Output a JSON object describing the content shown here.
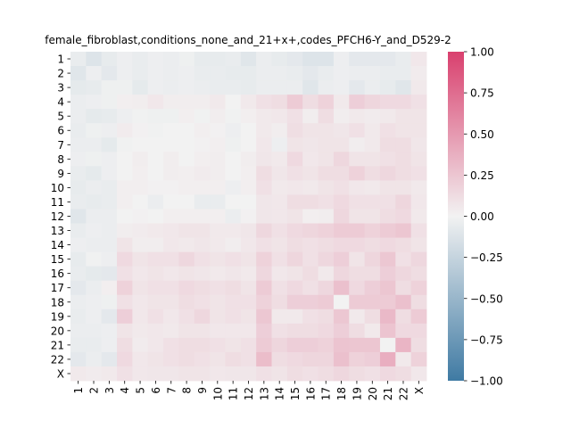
{
  "chart_data": {
    "type": "heatmap",
    "title": "female_fibroblast,conditions_none_and_21+x+,codes_PFCH6-Y_and_D529-2",
    "xlabel": "",
    "ylabel": "",
    "row_labels": [
      "1",
      "2",
      "3",
      "4",
      "5",
      "6",
      "7",
      "8",
      "9",
      "10",
      "11",
      "12",
      "13",
      "14",
      "15",
      "16",
      "17",
      "18",
      "19",
      "20",
      "21",
      "22",
      "X"
    ],
    "col_labels": [
      "1",
      "2",
      "3",
      "4",
      "5",
      "6",
      "7",
      "8",
      "9",
      "10",
      "11",
      "12",
      "13",
      "14",
      "15",
      "16",
      "17",
      "18",
      "19",
      "20",
      "21",
      "22",
      "X"
    ],
    "colorbar": {
      "vmin": -1.0,
      "vmax": 1.0,
      "ticks": [
        1.0,
        0.75,
        0.5,
        0.25,
        0.0,
        -0.25,
        -0.5,
        -0.75,
        -1.0
      ],
      "tick_labels": [
        "1.00",
        "0.75",
        "0.50",
        "0.25",
        "0.00",
        "−0.25",
        "−0.50",
        "−0.75",
        "−1.00"
      ],
      "color_low": "#3f7aa3",
      "color_mid": "#f2f2f2",
      "color_high": "#d9406e"
    },
    "values": [
      [
        -0.05,
        -0.12,
        -0.06,
        -0.03,
        -0.05,
        -0.03,
        -0.04,
        -0.02,
        -0.06,
        -0.06,
        -0.05,
        -0.1,
        -0.04,
        -0.06,
        -0.08,
        -0.12,
        -0.12,
        -0.03,
        -0.08,
        -0.08,
        -0.08,
        -0.05,
        0.06
      ],
      [
        -0.1,
        -0.03,
        -0.08,
        -0.03,
        -0.05,
        -0.03,
        -0.04,
        -0.03,
        -0.05,
        -0.05,
        -0.06,
        -0.06,
        -0.04,
        -0.04,
        -0.05,
        -0.08,
        -0.05,
        -0.03,
        -0.04,
        -0.04,
        -0.05,
        -0.05,
        0.04
      ],
      [
        -0.07,
        -0.06,
        -0.02,
        -0.02,
        -0.07,
        -0.03,
        -0.04,
        -0.03,
        -0.04,
        -0.05,
        -0.05,
        -0.06,
        -0.04,
        -0.04,
        -0.04,
        -0.1,
        -0.04,
        -0.03,
        -0.08,
        -0.04,
        -0.06,
        -0.1,
        0.05
      ],
      [
        -0.04,
        -0.03,
        -0.02,
        0.02,
        0.03,
        0.06,
        0.03,
        0.03,
        0.03,
        0.05,
        0.0,
        0.05,
        0.1,
        0.12,
        0.22,
        0.12,
        0.18,
        0.05,
        0.2,
        0.16,
        0.14,
        0.14,
        0.1
      ],
      [
        -0.04,
        -0.07,
        -0.06,
        -0.03,
        -0.01,
        -0.02,
        -0.02,
        0.02,
        -0.01,
        0.03,
        -0.01,
        0.02,
        0.05,
        0.06,
        0.1,
        0.03,
        0.12,
        0.03,
        0.05,
        0.04,
        0.05,
        0.08,
        0.08
      ],
      [
        -0.05,
        -0.02,
        -0.03,
        0.04,
        0.01,
        -0.01,
        0.0,
        0.0,
        0.02,
        0.01,
        -0.03,
        0.0,
        0.05,
        0.03,
        0.11,
        0.08,
        0.08,
        0.07,
        0.1,
        0.05,
        0.1,
        0.08,
        0.08
      ],
      [
        -0.04,
        -0.04,
        -0.07,
        -0.01,
        0.0,
        0.0,
        0.0,
        0.0,
        0.01,
        0.02,
        -0.02,
        0.0,
        0.06,
        -0.03,
        0.08,
        0.07,
        0.08,
        0.08,
        0.03,
        0.05,
        0.12,
        0.12,
        0.07
      ],
      [
        -0.03,
        -0.02,
        -0.03,
        0.0,
        0.03,
        0.0,
        0.03,
        0.0,
        0.02,
        0.03,
        0.0,
        0.03,
        0.07,
        0.05,
        0.14,
        0.06,
        0.08,
        0.15,
        0.08,
        0.08,
        0.1,
        0.12,
        0.08
      ],
      [
        -0.05,
        -0.07,
        -0.03,
        0.0,
        0.02,
        0.0,
        0.03,
        0.02,
        0.04,
        0.03,
        0.0,
        0.02,
        0.12,
        0.07,
        0.1,
        0.08,
        0.12,
        0.12,
        0.18,
        0.12,
        0.15,
        0.12,
        0.1
      ],
      [
        -0.06,
        -0.04,
        -0.05,
        0.02,
        0.02,
        0.01,
        0.01,
        0.02,
        0.02,
        0.02,
        -0.03,
        0.02,
        0.1,
        0.05,
        0.06,
        0.05,
        0.08,
        0.1,
        0.06,
        0.05,
        0.08,
        0.08,
        0.05
      ],
      [
        -0.05,
        -0.06,
        -0.05,
        0.02,
        0.0,
        -0.04,
        0.0,
        0.0,
        -0.05,
        -0.05,
        0.0,
        0.0,
        0.07,
        0.06,
        0.12,
        0.12,
        0.1,
        0.14,
        0.1,
        0.1,
        0.1,
        0.16,
        0.06
      ],
      [
        -0.1,
        -0.04,
        -0.04,
        0.0,
        0.01,
        0.0,
        0.02,
        0.02,
        0.02,
        0.02,
        -0.04,
        0.01,
        0.07,
        0.06,
        0.08,
        0.02,
        0.03,
        0.15,
        0.08,
        0.08,
        0.12,
        0.14,
        0.05
      ],
      [
        -0.05,
        -0.03,
        -0.04,
        0.03,
        0.04,
        0.05,
        0.06,
        0.08,
        0.08,
        0.05,
        0.05,
        0.07,
        0.15,
        0.1,
        0.14,
        0.16,
        0.18,
        0.22,
        0.22,
        0.18,
        0.22,
        0.25,
        0.1
      ],
      [
        -0.03,
        -0.04,
        -0.04,
        0.08,
        0.03,
        0.03,
        0.06,
        0.05,
        0.07,
        0.05,
        0.03,
        0.06,
        0.1,
        0.08,
        0.12,
        0.1,
        0.12,
        0.14,
        0.14,
        0.12,
        0.14,
        0.12,
        0.08
      ],
      [
        -0.06,
        -0.01,
        -0.03,
        0.14,
        0.08,
        0.1,
        0.1,
        0.15,
        0.1,
        0.08,
        0.1,
        0.08,
        0.18,
        0.1,
        0.16,
        0.1,
        0.15,
        0.2,
        0.08,
        0.16,
        0.24,
        0.1,
        0.15
      ],
      [
        -0.05,
        -0.07,
        -0.08,
        0.1,
        0.06,
        0.08,
        0.06,
        0.08,
        0.07,
        0.05,
        0.07,
        0.05,
        0.15,
        0.06,
        0.08,
        0.12,
        0.05,
        0.15,
        0.12,
        0.12,
        0.2,
        0.15,
        0.12
      ],
      [
        -0.08,
        -0.04,
        0.02,
        0.18,
        0.08,
        0.1,
        0.1,
        0.14,
        0.12,
        0.1,
        0.12,
        0.08,
        0.22,
        0.1,
        0.14,
        0.1,
        0.15,
        0.28,
        0.14,
        0.2,
        0.25,
        0.12,
        0.18
      ],
      [
        -0.04,
        -0.03,
        -0.02,
        0.1,
        0.06,
        0.08,
        0.08,
        0.12,
        0.1,
        0.08,
        0.1,
        0.1,
        0.18,
        0.12,
        0.2,
        0.2,
        0.22,
        0.0,
        0.22,
        0.22,
        0.22,
        0.28,
        0.12
      ],
      [
        -0.05,
        -0.03,
        -0.08,
        0.2,
        0.06,
        0.1,
        0.06,
        0.1,
        0.15,
        0.08,
        0.1,
        0.08,
        0.24,
        0.05,
        0.05,
        0.1,
        0.12,
        0.24,
        0.05,
        0.12,
        0.32,
        0.12,
        0.22
      ],
      [
        -0.04,
        -0.04,
        -0.03,
        0.08,
        0.05,
        0.06,
        0.05,
        0.08,
        0.08,
        0.06,
        0.06,
        0.06,
        0.2,
        0.1,
        0.12,
        0.12,
        0.14,
        0.2,
        0.12,
        0.05,
        0.26,
        0.14,
        0.14
      ],
      [
        -0.05,
        -0.05,
        -0.03,
        0.12,
        0.04,
        0.06,
        0.1,
        0.12,
        0.12,
        0.1,
        0.08,
        0.1,
        0.22,
        0.16,
        0.2,
        0.2,
        0.18,
        0.26,
        0.25,
        0.25,
        0.0,
        0.34,
        0.12
      ],
      [
        -0.08,
        -0.04,
        -0.08,
        0.14,
        0.06,
        0.08,
        0.1,
        0.12,
        0.1,
        0.08,
        0.12,
        0.1,
        0.3,
        0.12,
        0.14,
        0.16,
        0.16,
        0.28,
        0.18,
        0.2,
        0.38,
        0.05,
        0.18
      ],
      [
        0.05,
        0.04,
        0.05,
        0.1,
        0.06,
        0.07,
        0.07,
        0.08,
        0.08,
        0.06,
        0.07,
        0.07,
        0.1,
        0.08,
        0.12,
        0.1,
        0.12,
        0.15,
        0.12,
        0.1,
        0.14,
        0.12,
        0.06
      ]
    ]
  }
}
